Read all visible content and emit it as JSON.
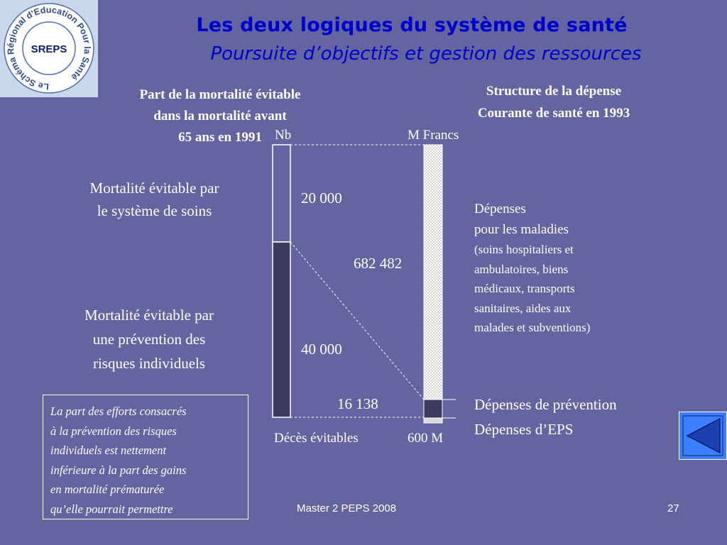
{
  "logo": {
    "name": "SREPS",
    "ring_text": "Le Schéma Régional d'Education Pour la Santé"
  },
  "title": {
    "line1": "Les deux logiques du système de santé",
    "line2": "Poursuite d’objectifs et gestion des ressources"
  },
  "left_heading": {
    "line1": "Part de la mortalité évitable",
    "line2": "dans la mortalité avant",
    "line3": "65 ans en 1991"
  },
  "right_heading": {
    "line1": "Structure de la dépense",
    "line2": "Courante de santé en 1993"
  },
  "axis": {
    "nb": "Nb",
    "francs": "M  Francs",
    "deces": "Décès évitables",
    "m600": "600 M"
  },
  "left_labels": {
    "soins_line1": "Mortalité évitable par",
    "soins_line2": "le système de soins",
    "prevention_line1": "Mortalité évitable par",
    "prevention_line2": "une prévention des",
    "prevention_line3": "risques individuels"
  },
  "values": {
    "soins": "20 000",
    "prevention_risques": "40 000",
    "maladies": "682 482",
    "prevention_depenses": "16 138"
  },
  "right_labels": {
    "maladies_line1": "Dépenses",
    "maladies_line2": "pour les maladies",
    "maladies_detail1": "(soins hospitaliers et",
    "maladies_detail2": "ambulatoires, biens",
    "maladies_detail3": "médicaux, transports",
    "maladies_detail4": "sanitaires, aides aux",
    "maladies_detail5": "malades et subventions)",
    "prevention": "Dépenses de prévention",
    "eps": "Dépenses d’EPS"
  },
  "note": {
    "line1": "La part des efforts consacrés",
    "line2": "à la prévention des risques",
    "line3": "individuels est nettement",
    "line4": "inférieure à la part des gains",
    "line5": "en mortalité prématurée",
    "line6": "qu’elle pourrait permettre"
  },
  "footer": {
    "course": "Master 2 PEPS 2008",
    "page": "27"
  },
  "colors": {
    "background": "#6464a0",
    "title": "#0000cc",
    "dark_bar": "#3b3b5e",
    "logo_bg": "#c9d7ec",
    "nav_button": "#3d7fff"
  },
  "icons": {
    "nav": "back-arrow-icon"
  }
}
